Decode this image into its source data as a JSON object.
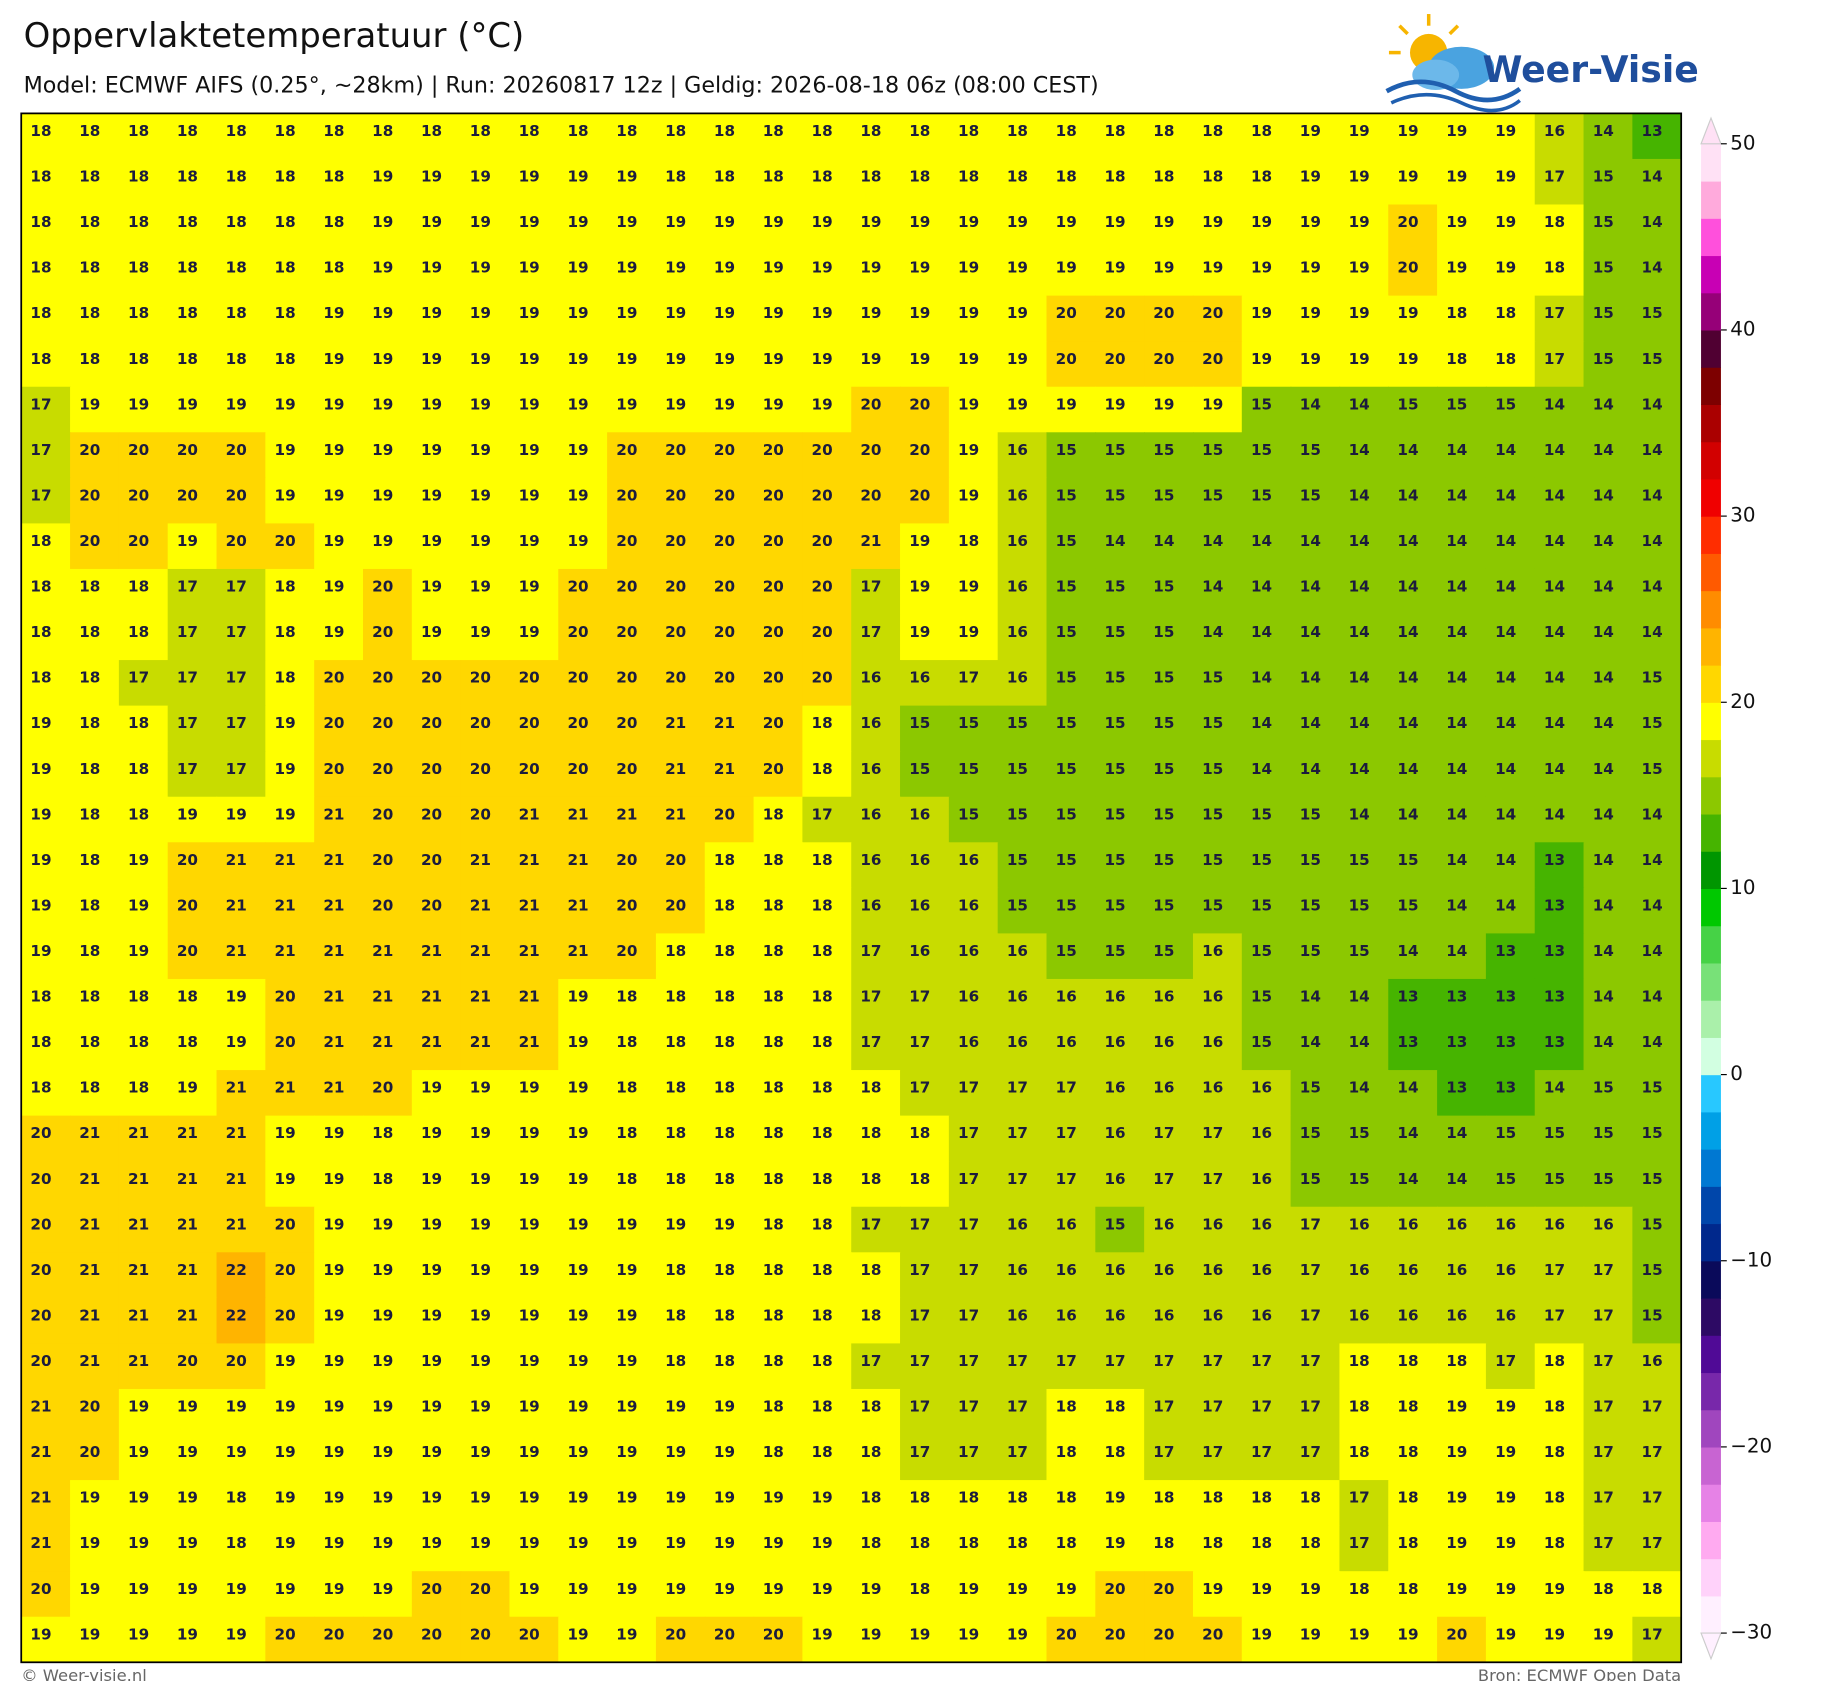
{
  "header": {
    "title": "Oppervlaktetemperatuur (°C)",
    "subtitle": "Model: ECMWF AIFS (0.25°, ~28km)  |  Run: 20260817 12z  |  Geldig: 2026-08-18 06z (08:00 CEST)"
  },
  "logo": {
    "text": "Weer-Visie"
  },
  "map": {
    "values": [
      [
        18,
        18,
        18,
        18,
        18,
        18,
        18,
        18,
        18,
        18,
        18,
        18,
        18,
        18,
        18,
        18,
        18,
        18,
        18,
        18,
        18,
        18,
        18,
        18,
        18,
        18,
        19,
        19,
        19,
        19,
        19,
        16,
        14,
        13
      ],
      [
        18,
        18,
        18,
        18,
        18,
        18,
        18,
        19,
        19,
        19,
        19,
        19,
        19,
        18,
        18,
        18,
        18,
        18,
        18,
        18,
        18,
        18,
        18,
        18,
        18,
        18,
        19,
        19,
        19,
        19,
        19,
        17,
        15,
        14
      ],
      [
        18,
        18,
        18,
        18,
        18,
        18,
        18,
        19,
        19,
        19,
        19,
        19,
        19,
        19,
        19,
        19,
        19,
        19,
        19,
        19,
        19,
        19,
        19,
        19,
        19,
        19,
        19,
        19,
        20,
        19,
        19,
        18,
        15,
        14
      ],
      [
        18,
        18,
        18,
        18,
        18,
        18,
        18,
        19,
        19,
        19,
        19,
        19,
        19,
        19,
        19,
        19,
        19,
        19,
        19,
        19,
        19,
        19,
        19,
        19,
        19,
        19,
        19,
        19,
        20,
        19,
        19,
        18,
        15,
        14
      ],
      [
        18,
        18,
        18,
        18,
        18,
        18,
        19,
        19,
        19,
        19,
        19,
        19,
        19,
        19,
        19,
        19,
        19,
        19,
        19,
        19,
        19,
        20,
        20,
        20,
        20,
        19,
        19,
        19,
        19,
        18,
        18,
        17,
        15,
        15
      ],
      [
        18,
        18,
        18,
        18,
        18,
        18,
        19,
        19,
        19,
        19,
        19,
        19,
        19,
        19,
        19,
        19,
        19,
        19,
        19,
        19,
        19,
        20,
        20,
        20,
        20,
        19,
        19,
        19,
        19,
        18,
        18,
        17,
        15,
        15
      ],
      [
        17,
        19,
        19,
        19,
        19,
        19,
        19,
        19,
        19,
        19,
        19,
        19,
        19,
        19,
        19,
        19,
        19,
        20,
        20,
        19,
        19,
        19,
        19,
        19,
        19,
        15,
        14,
        14,
        15,
        15,
        15,
        14,
        14,
        14
      ],
      [
        17,
        20,
        20,
        20,
        20,
        19,
        19,
        19,
        19,
        19,
        19,
        19,
        20,
        20,
        20,
        20,
        20,
        20,
        20,
        19,
        16,
        15,
        15,
        15,
        15,
        15,
        15,
        14,
        14,
        14,
        14,
        14,
        14,
        14
      ],
      [
        17,
        20,
        20,
        20,
        20,
        19,
        19,
        19,
        19,
        19,
        19,
        19,
        20,
        20,
        20,
        20,
        20,
        20,
        20,
        19,
        16,
        15,
        15,
        15,
        15,
        15,
        15,
        14,
        14,
        14,
        14,
        14,
        14,
        14
      ],
      [
        18,
        20,
        20,
        19,
        20,
        20,
        19,
        19,
        19,
        19,
        19,
        19,
        20,
        20,
        20,
        20,
        20,
        21,
        19,
        18,
        16,
        15,
        14,
        14,
        14,
        14,
        14,
        14,
        14,
        14,
        14,
        14,
        14,
        14
      ],
      [
        18,
        18,
        18,
        17,
        17,
        18,
        19,
        20,
        19,
        19,
        19,
        20,
        20,
        20,
        20,
        20,
        20,
        17,
        19,
        19,
        16,
        15,
        15,
        15,
        14,
        14,
        14,
        14,
        14,
        14,
        14,
        14,
        14,
        14
      ],
      [
        18,
        18,
        18,
        17,
        17,
        18,
        19,
        20,
        19,
        19,
        19,
        20,
        20,
        20,
        20,
        20,
        20,
        17,
        19,
        19,
        16,
        15,
        15,
        15,
        14,
        14,
        14,
        14,
        14,
        14,
        14,
        14,
        14,
        14
      ],
      [
        18,
        18,
        17,
        17,
        17,
        18,
        20,
        20,
        20,
        20,
        20,
        20,
        20,
        20,
        20,
        20,
        20,
        16,
        16,
        17,
        16,
        15,
        15,
        15,
        15,
        14,
        14,
        14,
        14,
        14,
        14,
        14,
        14,
        15
      ],
      [
        19,
        18,
        18,
        17,
        17,
        19,
        20,
        20,
        20,
        20,
        20,
        20,
        20,
        21,
        21,
        20,
        18,
        16,
        15,
        15,
        15,
        15,
        15,
        15,
        15,
        14,
        14,
        14,
        14,
        14,
        14,
        14,
        14,
        15
      ],
      [
        19,
        18,
        18,
        17,
        17,
        19,
        20,
        20,
        20,
        20,
        20,
        20,
        20,
        21,
        21,
        20,
        18,
        16,
        15,
        15,
        15,
        15,
        15,
        15,
        15,
        14,
        14,
        14,
        14,
        14,
        14,
        14,
        14,
        15
      ],
      [
        19,
        18,
        18,
        19,
        19,
        19,
        21,
        20,
        20,
        20,
        21,
        21,
        21,
        21,
        20,
        18,
        17,
        16,
        16,
        15,
        15,
        15,
        15,
        15,
        15,
        15,
        15,
        14,
        14,
        14,
        14,
        14,
        14,
        14
      ],
      [
        19,
        18,
        19,
        20,
        21,
        21,
        21,
        20,
        20,
        21,
        21,
        21,
        20,
        20,
        18,
        18,
        18,
        16,
        16,
        16,
        15,
        15,
        15,
        15,
        15,
        15,
        15,
        15,
        15,
        14,
        14,
        13,
        14,
        14
      ],
      [
        19,
        18,
        19,
        20,
        21,
        21,
        21,
        20,
        20,
        21,
        21,
        21,
        20,
        20,
        18,
        18,
        18,
        16,
        16,
        16,
        15,
        15,
        15,
        15,
        15,
        15,
        15,
        15,
        15,
        14,
        14,
        13,
        14,
        14
      ],
      [
        19,
        18,
        19,
        20,
        21,
        21,
        21,
        21,
        21,
        21,
        21,
        21,
        20,
        18,
        18,
        18,
        18,
        17,
        16,
        16,
        16,
        15,
        15,
        15,
        16,
        15,
        15,
        15,
        14,
        14,
        13,
        13,
        14,
        14
      ],
      [
        18,
        18,
        18,
        18,
        19,
        20,
        21,
        21,
        21,
        21,
        21,
        19,
        18,
        18,
        18,
        18,
        18,
        17,
        17,
        16,
        16,
        16,
        16,
        16,
        16,
        15,
        14,
        14,
        13,
        13,
        13,
        13,
        14,
        14
      ],
      [
        18,
        18,
        18,
        18,
        19,
        20,
        21,
        21,
        21,
        21,
        21,
        19,
        18,
        18,
        18,
        18,
        18,
        17,
        17,
        16,
        16,
        16,
        16,
        16,
        16,
        15,
        14,
        14,
        13,
        13,
        13,
        13,
        14,
        14
      ],
      [
        18,
        18,
        18,
        19,
        21,
        21,
        21,
        20,
        19,
        19,
        19,
        19,
        18,
        18,
        18,
        18,
        18,
        18,
        17,
        17,
        17,
        17,
        16,
        16,
        16,
        16,
        15,
        14,
        14,
        13,
        13,
        14,
        15,
        15
      ],
      [
        20,
        21,
        21,
        21,
        21,
        19,
        19,
        18,
        19,
        19,
        19,
        19,
        18,
        18,
        18,
        18,
        18,
        18,
        18,
        17,
        17,
        17,
        16,
        17,
        17,
        16,
        15,
        15,
        14,
        14,
        15,
        15,
        15,
        15
      ],
      [
        20,
        21,
        21,
        21,
        21,
        19,
        19,
        18,
        19,
        19,
        19,
        19,
        18,
        18,
        18,
        18,
        18,
        18,
        18,
        17,
        17,
        17,
        16,
        17,
        17,
        16,
        15,
        15,
        14,
        14,
        15,
        15,
        15,
        15
      ],
      [
        20,
        21,
        21,
        21,
        21,
        20,
        19,
        19,
        19,
        19,
        19,
        19,
        19,
        19,
        19,
        18,
        18,
        17,
        17,
        17,
        16,
        16,
        15,
        16,
        16,
        16,
        17,
        16,
        16,
        16,
        16,
        16,
        16,
        15
      ],
      [
        20,
        21,
        21,
        21,
        22,
        20,
        19,
        19,
        19,
        19,
        19,
        19,
        19,
        18,
        18,
        18,
        18,
        18,
        17,
        17,
        16,
        16,
        16,
        16,
        16,
        16,
        17,
        16,
        16,
        16,
        16,
        17,
        17,
        15
      ],
      [
        20,
        21,
        21,
        21,
        22,
        20,
        19,
        19,
        19,
        19,
        19,
        19,
        19,
        18,
        18,
        18,
        18,
        18,
        17,
        17,
        16,
        16,
        16,
        16,
        16,
        16,
        17,
        16,
        16,
        16,
        16,
        17,
        17,
        15
      ],
      [
        20,
        21,
        21,
        20,
        20,
        19,
        19,
        19,
        19,
        19,
        19,
        19,
        19,
        18,
        18,
        18,
        18,
        17,
        17,
        17,
        17,
        17,
        17,
        17,
        17,
        17,
        17,
        18,
        18,
        18,
        17,
        18,
        17,
        16
      ],
      [
        21,
        20,
        19,
        19,
        19,
        19,
        19,
        19,
        19,
        19,
        19,
        19,
        19,
        19,
        19,
        18,
        18,
        18,
        17,
        17,
        17,
        18,
        18,
        17,
        17,
        17,
        17,
        18,
        18,
        19,
        19,
        18,
        17,
        17
      ],
      [
        21,
        20,
        19,
        19,
        19,
        19,
        19,
        19,
        19,
        19,
        19,
        19,
        19,
        19,
        19,
        18,
        18,
        18,
        17,
        17,
        17,
        18,
        18,
        17,
        17,
        17,
        17,
        18,
        18,
        19,
        19,
        18,
        17,
        17
      ],
      [
        21,
        19,
        19,
        19,
        18,
        19,
        19,
        19,
        19,
        19,
        19,
        19,
        19,
        19,
        19,
        19,
        19,
        18,
        18,
        18,
        18,
        18,
        19,
        18,
        18,
        18,
        18,
        17,
        18,
        19,
        19,
        18,
        17,
        17
      ],
      [
        21,
        19,
        19,
        19,
        18,
        19,
        19,
        19,
        19,
        19,
        19,
        19,
        19,
        19,
        19,
        19,
        19,
        18,
        18,
        18,
        18,
        18,
        19,
        18,
        18,
        18,
        18,
        17,
        18,
        19,
        19,
        18,
        17,
        17
      ],
      [
        20,
        19,
        19,
        19,
        19,
        19,
        19,
        19,
        20,
        20,
        19,
        19,
        19,
        19,
        19,
        19,
        19,
        19,
        18,
        19,
        19,
        19,
        20,
        20,
        19,
        19,
        19,
        18,
        18,
        19,
        19,
        19,
        18,
        18
      ],
      [
        19,
        19,
        19,
        19,
        19,
        20,
        20,
        20,
        20,
        20,
        20,
        19,
        19,
        20,
        20,
        20,
        19,
        19,
        19,
        19,
        19,
        20,
        20,
        20,
        20,
        19,
        19,
        19,
        19,
        20,
        19,
        19,
        19,
        17
      ]
    ]
  },
  "colorbar": {
    "lim": [
      -30,
      50
    ],
    "ticks": [
      50,
      40,
      30,
      20,
      10,
      0,
      {
        "value": -10,
        "label": "−10"
      },
      {
        "value": -20,
        "label": "−20"
      },
      {
        "value": -30,
        "label": "−30"
      }
    ],
    "colors": [
      "#fff0ff",
      "#ffd2fa",
      "#ffaaf0",
      "#e682e6",
      "#c864d2",
      "#a046be",
      "#7828aa",
      "#500a96",
      "#2d0a64",
      "#0a0a5a",
      "#00288c",
      "#0046aa",
      "#0078d2",
      "#00a0e6",
      "#28c8ff",
      "#d2ffe1",
      "#aaf0aa",
      "#78e178",
      "#46d246",
      "#00c800",
      "#009600",
      "#46b400",
      "#8cc800",
      "#c8dc00",
      "#ffff00",
      "#ffd700",
      "#ffb400",
      "#ff8c00",
      "#ff5a00",
      "#ff2d00",
      "#f00000",
      "#d20000",
      "#aa0000",
      "#7d0000",
      "#500032",
      "#960078",
      "#c800b4",
      "#ff50dc",
      "#ffaadc",
      "#ffe1f5"
    ]
  },
  "footer": {
    "left": "© Weer-visie.nl",
    "right": "Bron: ECMWF Open Data"
  }
}
